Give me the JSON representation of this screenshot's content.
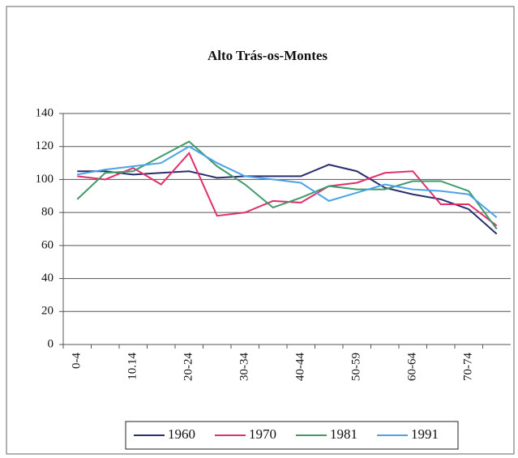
{
  "chart_data": {
    "type": "line",
    "title": "Alto Trás-os-Montes",
    "categories": [
      "0-4",
      null,
      "10.14",
      null,
      "20-24",
      null,
      "30-34",
      null,
      "40-44",
      null,
      "50-59",
      null,
      "60-64",
      null,
      "70-74",
      null
    ],
    "series": [
      {
        "name": "1960",
        "color": "#2b2e6e",
        "values": [
          105,
          105,
          103,
          104,
          105,
          101,
          102,
          102,
          102,
          109,
          105,
          95,
          91,
          88,
          82,
          67
        ]
      },
      {
        "name": "1970",
        "color": "#e0306a",
        "values": [
          102,
          100,
          107,
          97,
          116,
          78,
          80,
          87,
          86,
          96,
          98,
          104,
          105,
          85,
          85,
          72
        ]
      },
      {
        "name": "1981",
        "color": "#3f9a6a",
        "values": [
          88,
          104,
          105,
          114,
          123,
          108,
          97,
          83,
          89,
          96,
          94,
          94,
          99,
          99,
          93,
          70
        ]
      },
      {
        "name": "1991",
        "color": "#4aa3e8",
        "values": [
          103,
          106,
          108,
          110,
          120,
          110,
          102,
          100,
          98,
          87,
          92,
          97,
          94,
          93,
          91,
          77
        ]
      }
    ],
    "ylim": [
      0,
      140
    ],
    "yticks": [
      0,
      20,
      40,
      60,
      80,
      100,
      120,
      140
    ],
    "grid": true
  }
}
